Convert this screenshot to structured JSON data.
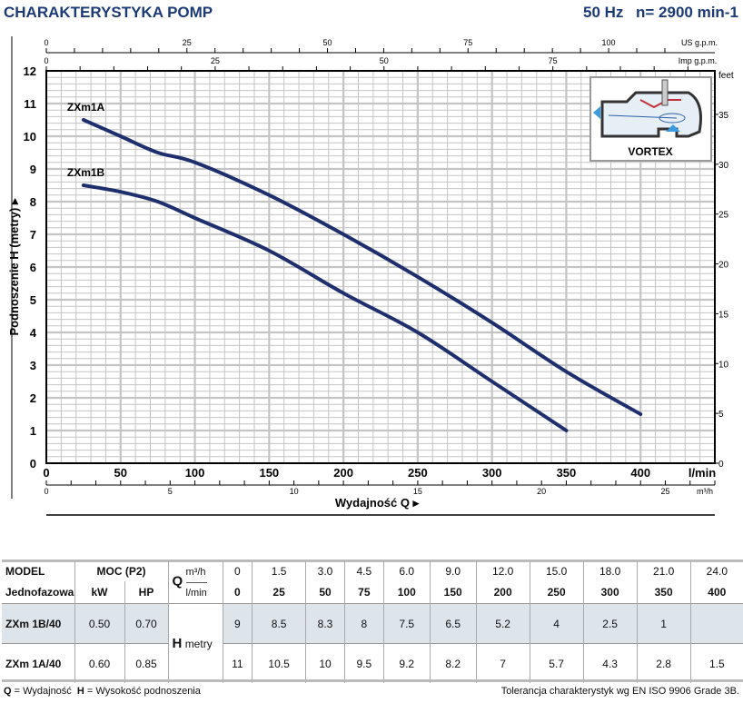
{
  "header": {
    "title": "CHARAKTERYSTYKA POMP",
    "freq": "50 Hz",
    "speed": "n= 2900 min-1"
  },
  "chart_data": {
    "type": "line",
    "ylabel": "Podnoszenie H (metry)",
    "xlabel": "Wydajność Q",
    "ylim": [
      0,
      12
    ],
    "xlim": [
      0,
      450
    ],
    "y_ticks": [
      0,
      1,
      2,
      3,
      4,
      5,
      6,
      7,
      8,
      9,
      10,
      11,
      12
    ],
    "x_ticks": [
      0,
      50,
      100,
      150,
      200,
      250,
      300,
      350,
      400
    ],
    "x_unit": "l/min",
    "m3h_ticks": [
      0,
      5,
      10,
      15,
      20,
      25
    ],
    "m3h_unit": "m³/h",
    "usgpm_ticks": [
      0,
      25,
      50,
      75,
      100
    ],
    "usgpm_unit": "US g.p.m.",
    "impgpm_ticks": [
      0,
      25,
      50,
      75
    ],
    "impgpm_unit": "Imp g.p.m.",
    "feet_ticks": [
      0,
      5,
      10,
      15,
      20,
      25,
      30,
      35
    ],
    "feet_unit": "feet",
    "grid": true,
    "series": [
      {
        "name": "ZXm1A",
        "x": [
          25,
          50,
          75,
          100,
          150,
          200,
          250,
          300,
          350,
          400
        ],
        "y": [
          10.5,
          10,
          9.5,
          9.2,
          8.2,
          7,
          5.7,
          4.3,
          2.8,
          1.5
        ]
      },
      {
        "name": "ZXm1B",
        "x": [
          25,
          50,
          75,
          100,
          150,
          200,
          250,
          300,
          350
        ],
        "y": [
          8.5,
          8.3,
          8,
          7.5,
          6.5,
          5.2,
          4,
          2.5,
          1
        ]
      }
    ],
    "inset_label": "VORTEX"
  },
  "colors": {
    "curve": "#1f2f6e",
    "title": "#1d3a78",
    "grid": "#c4c4c4"
  },
  "table": {
    "h_model": "MODEL",
    "h_phase": "Jednofazowa",
    "h_power": "MOC (P2)",
    "h_kw": "kW",
    "h_hp": "HP",
    "h_q": "Q",
    "h_m3h": "m³/h",
    "h_lmin": "l/min",
    "h_h": "H",
    "h_metry": "metry",
    "m3h": [
      "0",
      "1.5",
      "3.0",
      "4.5",
      "6.0",
      "9.0",
      "12.0",
      "15.0",
      "18.0",
      "21.0",
      "24.0"
    ],
    "lmin": [
      "0",
      "25",
      "50",
      "75",
      "100",
      "150",
      "200",
      "250",
      "300",
      "350",
      "400"
    ],
    "rows": [
      {
        "model": "ZXm 1B/40",
        "kw": "0.50",
        "hp": "0.70",
        "h": [
          "9",
          "8.5",
          "8.3",
          "8",
          "7.5",
          "6.5",
          "5.2",
          "4",
          "2.5",
          "1",
          ""
        ]
      },
      {
        "model": "ZXm 1A/40",
        "kw": "0.60",
        "hp": "0.85",
        "h": [
          "11",
          "10.5",
          "10",
          "9.5",
          "9.2",
          "8.2",
          "7",
          "5.7",
          "4.3",
          "2.8",
          "1.5"
        ]
      }
    ]
  },
  "footer": {
    "q_sym": "Q",
    "q_def": " = Wydajność  ",
    "h_sym": "H",
    "h_def": " = Wysokość podnoszenia",
    "tolerance": "Tolerancja charakterystyk wg EN ISO 9906 Grade 3B."
  }
}
